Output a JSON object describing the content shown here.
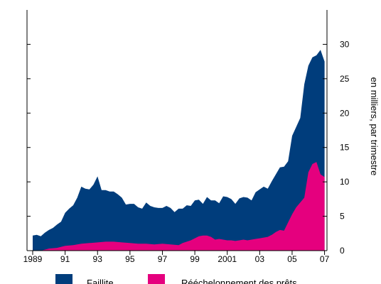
{
  "chart_data": {
    "type": "area",
    "stacked": false,
    "ylabel": "en milliers, par trimestre",
    "ylim": [
      0,
      35
    ],
    "yticks": [
      0,
      5,
      10,
      15,
      20,
      25,
      30
    ],
    "y_axis_side": "right",
    "grid": false,
    "x_tick_labels": [
      "1989",
      "91",
      "93",
      "95",
      "97",
      "99",
      "2001",
      "03",
      "05",
      "07"
    ],
    "x_tick_years": [
      1989,
      1991,
      1993,
      1995,
      1997,
      1999,
      2001,
      2003,
      2005,
      2007
    ],
    "legend_position": "bottom",
    "series": [
      {
        "name": "Faillite",
        "color": "#003D7C",
        "points": [
          [
            1989.0,
            2.2
          ],
          [
            1989.25,
            2.3
          ],
          [
            1989.5,
            2.1
          ],
          [
            1989.75,
            2.6
          ],
          [
            1990.0,
            3.0
          ],
          [
            1990.25,
            3.3
          ],
          [
            1990.5,
            3.8
          ],
          [
            1990.75,
            4.2
          ],
          [
            1991.0,
            5.5
          ],
          [
            1991.25,
            6.1
          ],
          [
            1991.5,
            6.6
          ],
          [
            1991.75,
            7.7
          ],
          [
            1992.0,
            9.3
          ],
          [
            1992.25,
            9.0
          ],
          [
            1992.5,
            8.9
          ],
          [
            1992.75,
            9.6
          ],
          [
            1993.0,
            10.8
          ],
          [
            1993.25,
            8.8
          ],
          [
            1993.5,
            8.8
          ],
          [
            1993.75,
            8.6
          ],
          [
            1994.0,
            8.6
          ],
          [
            1994.25,
            8.2
          ],
          [
            1994.5,
            7.7
          ],
          [
            1994.75,
            6.7
          ],
          [
            1995.0,
            6.8
          ],
          [
            1995.25,
            6.8
          ],
          [
            1995.5,
            6.3
          ],
          [
            1995.75,
            6.1
          ],
          [
            1996.0,
            7.0
          ],
          [
            1996.25,
            6.5
          ],
          [
            1996.5,
            6.3
          ],
          [
            1996.75,
            6.2
          ],
          [
            1997.0,
            6.2
          ],
          [
            1997.25,
            6.5
          ],
          [
            1997.5,
            6.2
          ],
          [
            1997.75,
            5.6
          ],
          [
            1998.0,
            6.1
          ],
          [
            1998.25,
            6.1
          ],
          [
            1998.5,
            6.6
          ],
          [
            1998.75,
            6.5
          ],
          [
            1999.0,
            7.3
          ],
          [
            1999.25,
            7.4
          ],
          [
            1999.5,
            6.8
          ],
          [
            1999.75,
            7.8
          ],
          [
            2000.0,
            7.3
          ],
          [
            2000.25,
            7.3
          ],
          [
            2000.5,
            6.9
          ],
          [
            2000.75,
            7.9
          ],
          [
            2001.0,
            7.8
          ],
          [
            2001.25,
            7.5
          ],
          [
            2001.5,
            6.8
          ],
          [
            2001.75,
            7.6
          ],
          [
            2002.0,
            7.8
          ],
          [
            2002.25,
            7.7
          ],
          [
            2002.5,
            7.3
          ],
          [
            2002.75,
            8.5
          ],
          [
            2003.0,
            8.9
          ],
          [
            2003.25,
            9.3
          ],
          [
            2003.5,
            9.0
          ],
          [
            2003.75,
            10.1
          ],
          [
            2004.0,
            11.1
          ],
          [
            2004.25,
            12.1
          ],
          [
            2004.5,
            12.2
          ],
          [
            2004.75,
            13.0
          ],
          [
            2005.0,
            16.7
          ],
          [
            2005.25,
            18.0
          ],
          [
            2005.5,
            19.3
          ],
          [
            2005.75,
            24.2
          ],
          [
            2006.0,
            26.9
          ],
          [
            2006.25,
            28.1
          ],
          [
            2006.5,
            28.4
          ],
          [
            2006.75,
            29.2
          ],
          [
            2007.0,
            27.5
          ]
        ]
      },
      {
        "name": "Rééchelonnement des prêts",
        "color": "#E5007E",
        "points": [
          [
            1989.0,
            0.0
          ],
          [
            1989.5,
            0.0
          ],
          [
            1990.0,
            0.3
          ],
          [
            1990.5,
            0.4
          ],
          [
            1991.0,
            0.7
          ],
          [
            1991.5,
            0.8
          ],
          [
            1992.0,
            1.0
          ],
          [
            1992.5,
            1.1
          ],
          [
            1993.0,
            1.2
          ],
          [
            1993.5,
            1.3
          ],
          [
            1994.0,
            1.3
          ],
          [
            1994.5,
            1.2
          ],
          [
            1995.0,
            1.1
          ],
          [
            1995.5,
            1.0
          ],
          [
            1996.0,
            1.0
          ],
          [
            1996.5,
            0.9
          ],
          [
            1997.0,
            1.0
          ],
          [
            1997.5,
            0.9
          ],
          [
            1998.0,
            0.8
          ],
          [
            1998.25,
            1.1
          ],
          [
            1998.5,
            1.3
          ],
          [
            1998.75,
            1.5
          ],
          [
            1999.0,
            1.8
          ],
          [
            1999.25,
            2.1
          ],
          [
            1999.5,
            2.2
          ],
          [
            1999.75,
            2.2
          ],
          [
            2000.0,
            2.0
          ],
          [
            2000.25,
            1.6
          ],
          [
            2000.5,
            1.7
          ],
          [
            2000.75,
            1.6
          ],
          [
            2001.0,
            1.5
          ],
          [
            2001.25,
            1.5
          ],
          [
            2001.5,
            1.4
          ],
          [
            2001.75,
            1.5
          ],
          [
            2002.0,
            1.6
          ],
          [
            2002.25,
            1.5
          ],
          [
            2002.5,
            1.6
          ],
          [
            2002.75,
            1.7
          ],
          [
            2003.0,
            1.8
          ],
          [
            2003.25,
            1.9
          ],
          [
            2003.5,
            2.0
          ],
          [
            2003.75,
            2.3
          ],
          [
            2004.0,
            2.7
          ],
          [
            2004.25,
            3.0
          ],
          [
            2004.5,
            2.9
          ],
          [
            2004.75,
            4.1
          ],
          [
            2005.0,
            5.3
          ],
          [
            2005.25,
            6.3
          ],
          [
            2005.5,
            7.0
          ],
          [
            2005.75,
            7.7
          ],
          [
            2006.0,
            11.4
          ],
          [
            2006.25,
            12.6
          ],
          [
            2006.5,
            12.9
          ],
          [
            2006.75,
            11.1
          ],
          [
            2007.0,
            10.7
          ]
        ]
      }
    ]
  }
}
